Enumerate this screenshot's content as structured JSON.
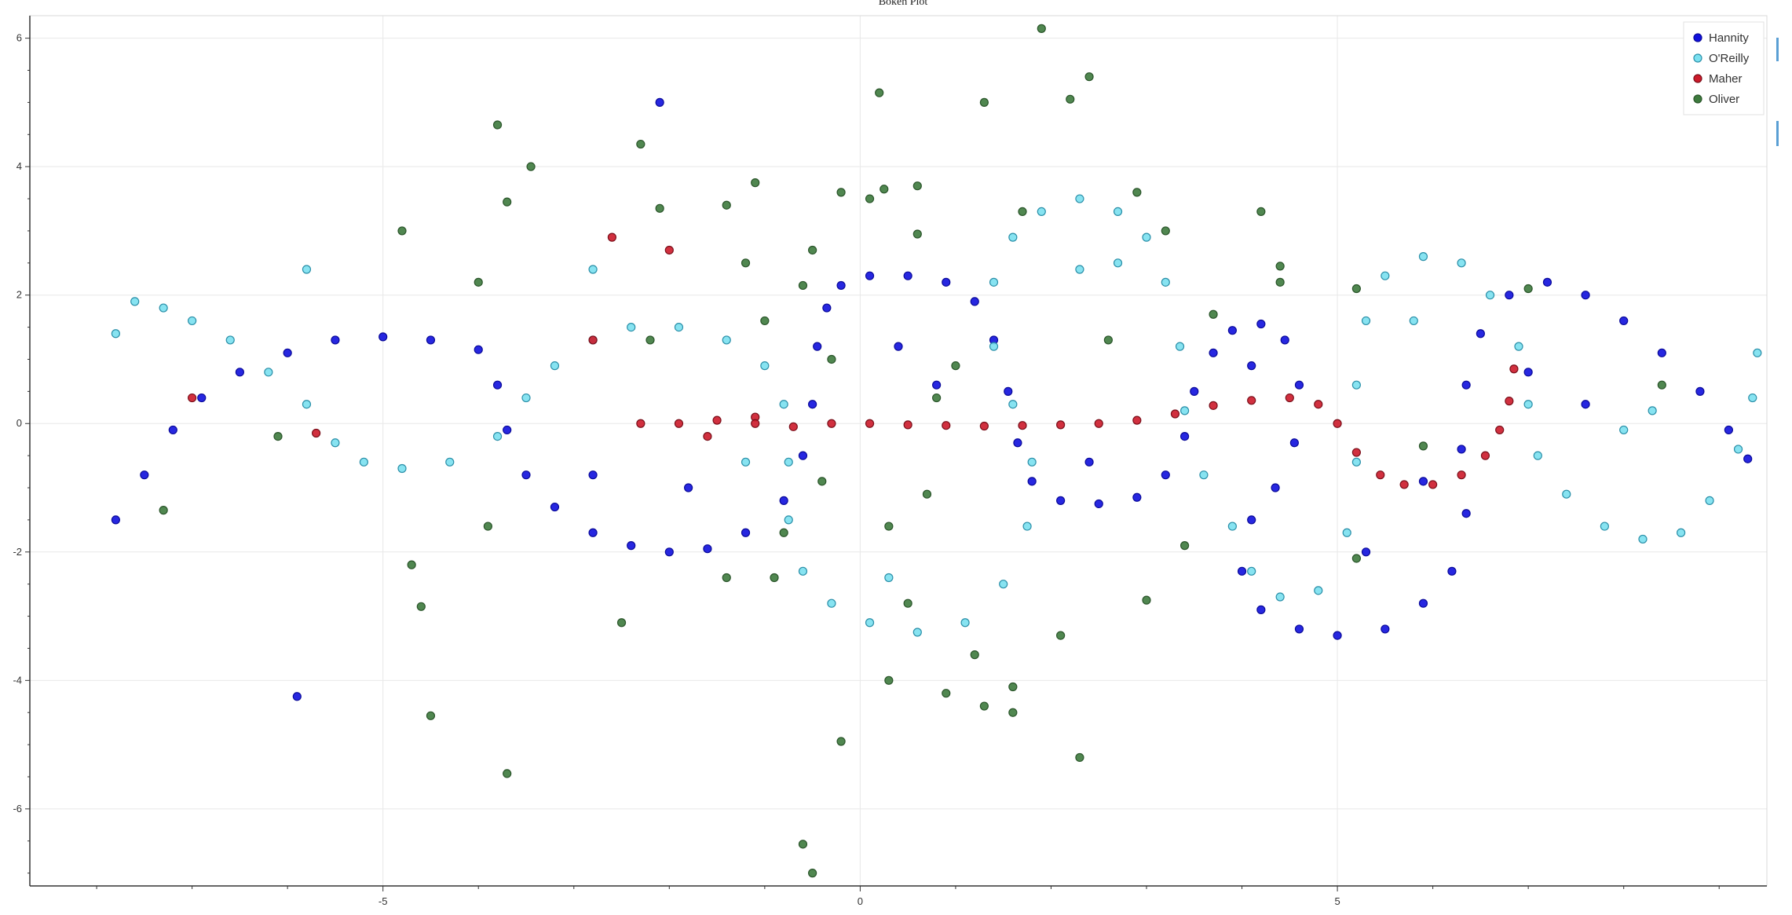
{
  "chart_data": {
    "type": "scatter",
    "title": "Bokeh Plot",
    "xlabel": "",
    "ylabel": "",
    "xlim": [
      -8.7,
      9.5
    ],
    "ylim": [
      -7.2,
      6.35
    ],
    "xticks": [
      -5,
      0,
      5
    ],
    "yticks": [
      -6,
      -4,
      -2,
      0,
      2,
      4,
      6
    ],
    "grid": true,
    "legend_position": "top-right",
    "series": [
      {
        "name": "Hannity",
        "fill": "#1010dd",
        "stroke": "#0a0a9a",
        "points": [
          [
            -7.8,
            -1.5
          ],
          [
            -7.5,
            -0.8
          ],
          [
            -7.2,
            -0.1
          ],
          [
            -6.9,
            0.4
          ],
          [
            -6.5,
            0.8
          ],
          [
            -6.0,
            1.1
          ],
          [
            -5.5,
            1.3
          ],
          [
            -5.0,
            1.35
          ],
          [
            -4.5,
            1.3
          ],
          [
            -4.0,
            1.15
          ],
          [
            -3.8,
            0.6
          ],
          [
            -3.7,
            -0.1
          ],
          [
            -3.5,
            -0.8
          ],
          [
            -3.2,
            -1.3
          ],
          [
            -2.8,
            -1.7
          ],
          [
            -2.4,
            -1.9
          ],
          [
            -2.0,
            -2.0
          ],
          [
            -1.6,
            -1.95
          ],
          [
            -1.2,
            -1.7
          ],
          [
            -0.8,
            -1.2
          ],
          [
            -0.6,
            -0.5
          ],
          [
            -0.5,
            0.3
          ],
          [
            -0.45,
            1.2
          ],
          [
            -0.35,
            1.8
          ],
          [
            -0.2,
            2.15
          ],
          [
            0.1,
            2.3
          ],
          [
            0.5,
            2.3
          ],
          [
            0.9,
            2.2
          ],
          [
            1.2,
            1.9
          ],
          [
            1.4,
            1.3
          ],
          [
            1.55,
            0.5
          ],
          [
            1.65,
            -0.3
          ],
          [
            1.8,
            -0.9
          ],
          [
            2.1,
            -1.2
          ],
          [
            2.5,
            -1.25
          ],
          [
            2.9,
            -1.15
          ],
          [
            3.2,
            -0.8
          ],
          [
            3.4,
            -0.2
          ],
          [
            3.5,
            0.5
          ],
          [
            3.7,
            1.1
          ],
          [
            3.9,
            1.45
          ],
          [
            4.2,
            1.55
          ],
          [
            4.45,
            1.3
          ],
          [
            4.6,
            0.6
          ],
          [
            4.55,
            -0.3
          ],
          [
            4.35,
            -1.0
          ],
          [
            4.1,
            -1.5
          ],
          [
            4.0,
            -2.3
          ],
          [
            4.2,
            -2.9
          ],
          [
            4.6,
            -3.2
          ],
          [
            5.0,
            -3.3
          ],
          [
            5.5,
            -3.2
          ],
          [
            5.9,
            -2.8
          ],
          [
            6.2,
            -2.3
          ],
          [
            6.35,
            -1.4
          ],
          [
            6.3,
            -0.4
          ],
          [
            6.35,
            0.6
          ],
          [
            6.5,
            1.4
          ],
          [
            6.8,
            2.0
          ],
          [
            7.2,
            2.2
          ],
          [
            7.6,
            2.0
          ],
          [
            8.0,
            1.6
          ],
          [
            8.4,
            1.1
          ],
          [
            8.8,
            0.5
          ],
          [
            9.1,
            -0.1
          ],
          [
            9.3,
            -0.55
          ],
          [
            -2.8,
            -0.8
          ],
          [
            -1.8,
            -1.0
          ],
          [
            0.4,
            1.2
          ],
          [
            0.8,
            0.6
          ],
          [
            2.4,
            -0.6
          ],
          [
            4.1,
            0.9
          ],
          [
            5.3,
            -2.0
          ],
          [
            5.9,
            -0.9
          ],
          [
            7.0,
            0.8
          ],
          [
            7.6,
            0.3
          ],
          [
            -5.9,
            -4.25
          ],
          [
            -2.1,
            5.0
          ]
        ]
      },
      {
        "name": "O'Reilly",
        "fill": "#7ae0f0",
        "stroke": "#2a8fa8",
        "points": [
          [
            -7.8,
            1.4
          ],
          [
            -7.6,
            1.9
          ],
          [
            -7.3,
            1.8
          ],
          [
            -7.0,
            1.6
          ],
          [
            -6.6,
            1.3
          ],
          [
            -6.2,
            0.8
          ],
          [
            -5.8,
            0.3
          ],
          [
            -5.5,
            -0.3
          ],
          [
            -5.2,
            -0.6
          ],
          [
            -4.8,
            -0.7
          ],
          [
            -4.3,
            -0.6
          ],
          [
            -3.8,
            -0.2
          ],
          [
            -3.5,
            0.4
          ],
          [
            -3.2,
            0.9
          ],
          [
            -2.8,
            1.3
          ],
          [
            -2.4,
            1.5
          ],
          [
            -1.9,
            1.5
          ],
          [
            -1.4,
            1.3
          ],
          [
            -1.0,
            0.9
          ],
          [
            -0.8,
            0.3
          ],
          [
            -0.75,
            -0.6
          ],
          [
            -0.75,
            -1.5
          ],
          [
            -0.6,
            -2.3
          ],
          [
            -0.3,
            -2.8
          ],
          [
            0.1,
            -3.1
          ],
          [
            0.6,
            -3.25
          ],
          [
            1.1,
            -3.1
          ],
          [
            1.5,
            -2.5
          ],
          [
            1.75,
            -1.6
          ],
          [
            1.8,
            -0.6
          ],
          [
            1.6,
            0.3
          ],
          [
            1.4,
            1.2
          ],
          [
            1.4,
            2.2
          ],
          [
            1.6,
            2.9
          ],
          [
            1.9,
            3.3
          ],
          [
            2.3,
            3.5
          ],
          [
            2.7,
            3.3
          ],
          [
            3.0,
            2.9
          ],
          [
            3.2,
            2.2
          ],
          [
            3.35,
            1.2
          ],
          [
            3.4,
            0.2
          ],
          [
            3.6,
            -0.8
          ],
          [
            3.9,
            -1.6
          ],
          [
            4.1,
            -2.3
          ],
          [
            4.4,
            -2.7
          ],
          [
            4.8,
            -2.6
          ],
          [
            5.1,
            -1.7
          ],
          [
            5.2,
            -0.6
          ],
          [
            5.2,
            0.6
          ],
          [
            5.3,
            1.6
          ],
          [
            5.5,
            2.3
          ],
          [
            5.9,
            2.6
          ],
          [
            6.3,
            2.5
          ],
          [
            6.6,
            2.0
          ],
          [
            6.9,
            1.2
          ],
          [
            7.0,
            0.3
          ],
          [
            7.1,
            -0.5
          ],
          [
            7.4,
            -1.1
          ],
          [
            7.8,
            -1.6
          ],
          [
            8.2,
            -1.8
          ],
          [
            8.6,
            -1.7
          ],
          [
            8.9,
            -1.2
          ],
          [
            9.2,
            -0.4
          ],
          [
            9.35,
            0.4
          ],
          [
            9.4,
            1.1
          ],
          [
            8.3,
            0.2
          ],
          [
            8.0,
            -0.1
          ],
          [
            -5.8,
            2.4
          ],
          [
            -2.8,
            2.4
          ],
          [
            2.3,
            2.4
          ],
          [
            5.8,
            1.6
          ],
          [
            -1.2,
            -0.6
          ],
          [
            0.3,
            -2.4
          ],
          [
            2.7,
            2.5
          ]
        ]
      },
      {
        "name": "Maher",
        "fill": "#cc1a2a",
        "stroke": "#7a0f1a",
        "points": [
          [
            -7.0,
            0.4
          ],
          [
            -5.7,
            -0.15
          ],
          [
            -2.6,
            2.9
          ],
          [
            -2.0,
            2.7
          ],
          [
            -2.8,
            1.3
          ],
          [
            -1.6,
            -0.2
          ],
          [
            -1.1,
            0.1
          ],
          [
            -2.3,
            0.0
          ],
          [
            -1.9,
            0.0
          ],
          [
            -1.5,
            0.05
          ],
          [
            -1.1,
            0.0
          ],
          [
            -0.7,
            -0.05
          ],
          [
            -0.3,
            0.0
          ],
          [
            0.1,
            0.0
          ],
          [
            0.5,
            -0.02
          ],
          [
            0.9,
            -0.03
          ],
          [
            1.3,
            -0.04
          ],
          [
            1.7,
            -0.03
          ],
          [
            2.1,
            -0.02
          ],
          [
            2.5,
            0.0
          ],
          [
            2.9,
            0.05
          ],
          [
            3.3,
            0.15
          ],
          [
            3.7,
            0.28
          ],
          [
            4.1,
            0.36
          ],
          [
            4.5,
            0.4
          ],
          [
            4.8,
            0.3
          ],
          [
            5.0,
            0.0
          ],
          [
            5.2,
            -0.45
          ],
          [
            5.45,
            -0.8
          ],
          [
            5.7,
            -0.95
          ],
          [
            6.0,
            -0.95
          ],
          [
            6.3,
            -0.8
          ],
          [
            6.55,
            -0.5
          ],
          [
            6.7,
            -0.1
          ],
          [
            6.8,
            0.35
          ],
          [
            6.85,
            0.85
          ]
        ]
      },
      {
        "name": "Oliver",
        "fill": "#3d7a3d",
        "stroke": "#2a552a",
        "points": [
          [
            -7.3,
            -1.35
          ],
          [
            -6.1,
            -0.2
          ],
          [
            -4.8,
            3.0
          ],
          [
            -4.7,
            -2.2
          ],
          [
            -4.6,
            -2.85
          ],
          [
            -4.5,
            -4.55
          ],
          [
            -4.0,
            2.2
          ],
          [
            -3.9,
            -1.6
          ],
          [
            -3.8,
            4.65
          ],
          [
            -3.7,
            3.45
          ],
          [
            -3.7,
            -5.45
          ],
          [
            -3.45,
            4.0
          ],
          [
            -2.3,
            4.35
          ],
          [
            -2.5,
            -3.1
          ],
          [
            -2.1,
            3.35
          ],
          [
            -2.2,
            1.3
          ],
          [
            -1.4,
            -2.4
          ],
          [
            -1.1,
            3.75
          ],
          [
            -1.4,
            3.4
          ],
          [
            -1.2,
            2.5
          ],
          [
            -1.0,
            1.6
          ],
          [
            -0.8,
            -1.7
          ],
          [
            -0.5,
            2.7
          ],
          [
            -0.6,
            2.15
          ],
          [
            -0.6,
            -6.55
          ],
          [
            -0.5,
            -7.0
          ],
          [
            -0.2,
            3.6
          ],
          [
            0.1,
            3.5
          ],
          [
            0.25,
            3.65
          ],
          [
            0.2,
            5.15
          ],
          [
            0.6,
            3.7
          ],
          [
            0.6,
            2.95
          ],
          [
            1.3,
            5.0
          ],
          [
            1.2,
            -3.6
          ],
          [
            0.9,
            -4.2
          ],
          [
            1.3,
            -4.4
          ],
          [
            1.6,
            -4.1
          ],
          [
            1.6,
            -4.5
          ],
          [
            0.3,
            -4.0
          ],
          [
            -0.2,
            -4.95
          ],
          [
            1.9,
            6.15
          ],
          [
            2.2,
            5.05
          ],
          [
            2.4,
            5.4
          ],
          [
            2.9,
            3.6
          ],
          [
            3.2,
            3.0
          ],
          [
            2.3,
            -5.2
          ],
          [
            2.1,
            -3.3
          ],
          [
            3.0,
            -2.75
          ],
          [
            3.4,
            -1.9
          ],
          [
            4.2,
            3.3
          ],
          [
            4.4,
            2.45
          ],
          [
            4.4,
            2.2
          ],
          [
            3.7,
            1.7
          ],
          [
            5.2,
            -2.1
          ],
          [
            5.2,
            2.1
          ],
          [
            5.9,
            -0.35
          ],
          [
            7.0,
            2.1
          ],
          [
            8.4,
            0.6
          ],
          [
            -0.9,
            -2.4
          ],
          [
            0.7,
            -1.1
          ],
          [
            0.8,
            0.4
          ],
          [
            0.3,
            -1.6
          ],
          [
            1.0,
            0.9
          ],
          [
            -0.4,
            -0.9
          ],
          [
            1.7,
            3.3
          ],
          [
            2.6,
            1.3
          ],
          [
            0.5,
            -2.8
          ],
          [
            -0.3,
            1.0
          ]
        ]
      }
    ]
  },
  "toolbar": {
    "bar_color": "#5a9fd4"
  }
}
